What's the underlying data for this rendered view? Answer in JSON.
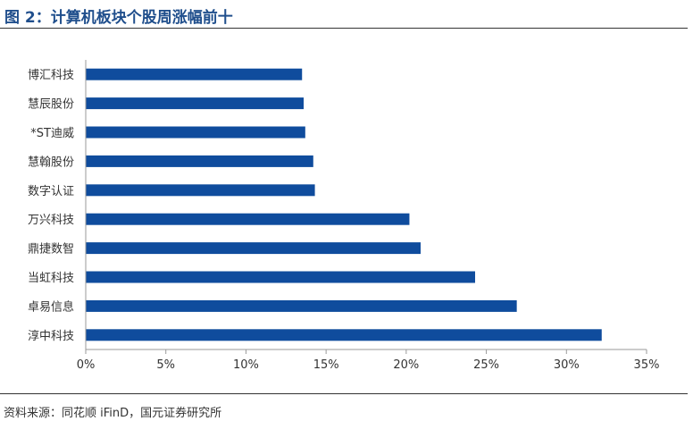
{
  "title": "图 2：计算机板块个股周涨幅前十",
  "source": "资料来源：同花顺 iFinD，国元证券研究所",
  "colors": {
    "title": "#1F4E8C",
    "bar": "#0F4C9D",
    "axis": "#9a9a9a",
    "text": "#333333"
  },
  "chart_data": {
    "type": "bar",
    "orientation": "horizontal",
    "categories": [
      "博汇科技",
      "慧辰股份",
      "*ST迪威",
      "慧翰股份",
      "数字认证",
      "万兴科技",
      "鼎捷数智",
      "当虹科技",
      "卓易信息",
      "淳中科技"
    ],
    "values": [
      13.5,
      13.6,
      13.7,
      14.2,
      14.3,
      20.2,
      20.9,
      24.3,
      26.9,
      32.2
    ],
    "x_ticks": [
      "0%",
      "5%",
      "10%",
      "15%",
      "20%",
      "25%",
      "30%",
      "35%"
    ],
    "xlim": [
      0,
      35
    ],
    "grid": false,
    "legend": "none"
  }
}
